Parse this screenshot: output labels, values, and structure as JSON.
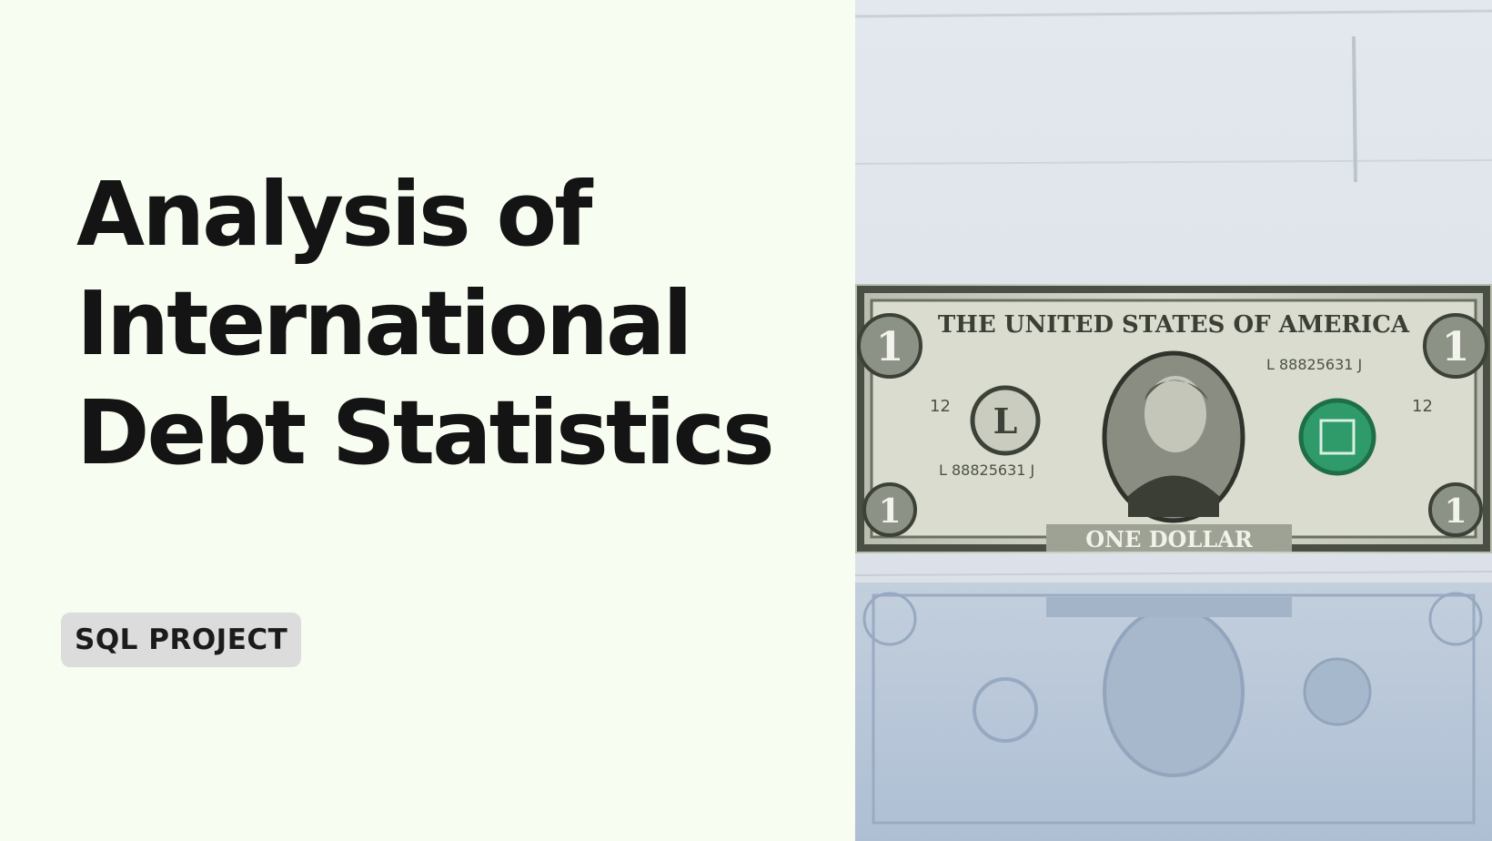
{
  "title_lines": [
    "Analysis of",
    "International",
    "Debt Statistics"
  ],
  "badge": "SQL PROJECT",
  "photo": {
    "subject": "one-dollar-bill-photo",
    "banknote_text": {
      "top": "THE UNITED STATES OF AMERICA",
      "bottom": "ONE DOLLAR",
      "denomination": "1",
      "seal_letter": "L",
      "serial": "L 88825631 J",
      "plate": "12"
    }
  },
  "colors": {
    "background": "#f8fdf2",
    "title": "#141414",
    "badge_bg": "#dcdcdc",
    "badge_text": "#1b1b1b",
    "wall": "#dde3ea",
    "note": "#c8cdbd",
    "note_ink": "#3a3f38",
    "seal_green": "#2f9a6a",
    "reflection": "#b7c4d6"
  }
}
